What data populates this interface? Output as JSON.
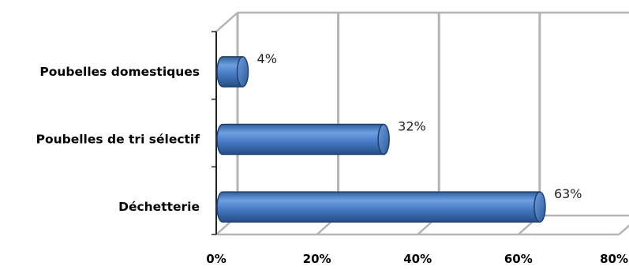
{
  "chart_data": {
    "type": "bar",
    "orientation": "horizontal",
    "style": "3d-cylinder",
    "categories": [
      "Poubelles domestiques",
      "Poubelles de tri sélectif",
      "Déchetterie"
    ],
    "values": [
      4,
      32,
      63
    ],
    "data_labels": [
      "4%",
      "32%",
      "63%"
    ],
    "xlim": [
      0,
      80
    ],
    "x_ticks": [
      0,
      20,
      40,
      60,
      80
    ],
    "x_tick_labels": [
      "0%",
      "20%",
      "40%",
      "60%",
      "80%"
    ],
    "grid": true,
    "legend": "none",
    "bar_color": "#4a7ec8",
    "bar_edge_color": "#1f3f6e"
  }
}
